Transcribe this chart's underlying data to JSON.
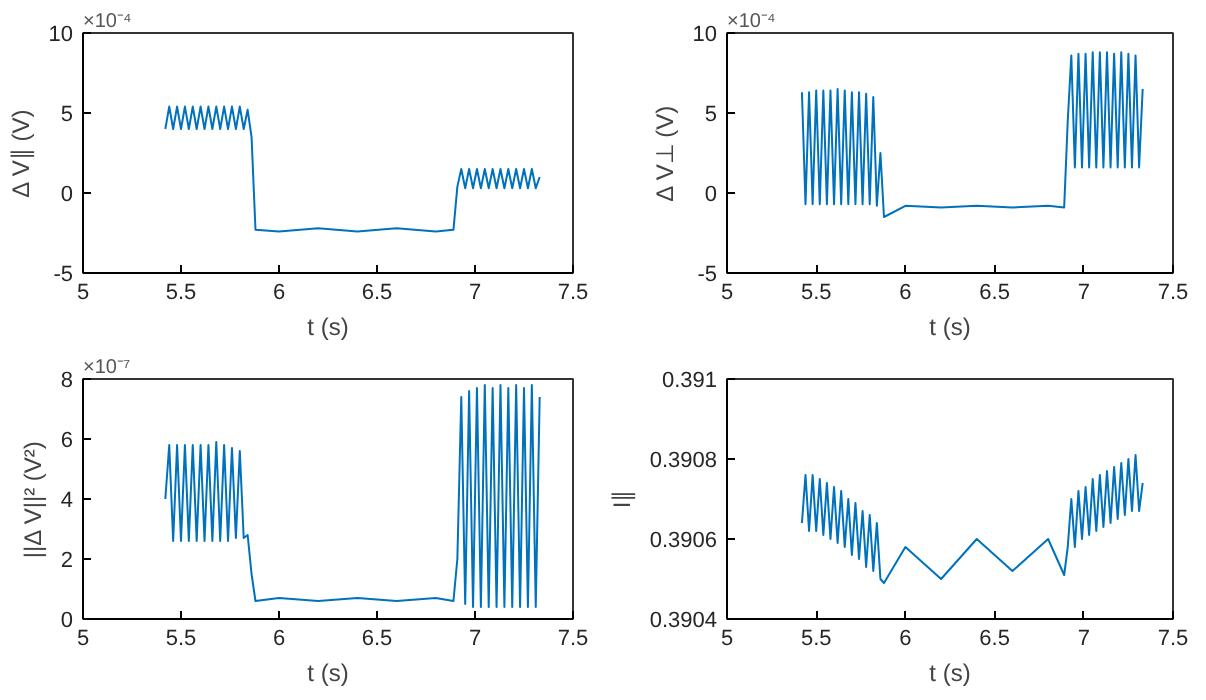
{
  "chart_data": [
    {
      "type": "line",
      "xlabel": "t (s)",
      "ylabel": "Δ V∥ (V)",
      "annotations": [
        "×10⁻⁴"
      ],
      "xlim": [
        5,
        7.5
      ],
      "ylim": [
        -5,
        10
      ],
      "xticks": [
        5,
        5.5,
        6,
        6.5,
        7,
        7.5
      ],
      "yticks": [
        -5,
        0,
        5,
        10
      ],
      "grid": false,
      "x": [
        5.42,
        5.44,
        5.46,
        5.48,
        5.5,
        5.52,
        5.54,
        5.56,
        5.58,
        5.6,
        5.62,
        5.64,
        5.66,
        5.68,
        5.7,
        5.72,
        5.74,
        5.76,
        5.78,
        5.8,
        5.82,
        5.84,
        5.86,
        5.88,
        6.0,
        6.2,
        6.4,
        6.6,
        6.8,
        6.89,
        6.91,
        6.93,
        6.95,
        6.97,
        6.99,
        7.01,
        7.03,
        7.05,
        7.07,
        7.09,
        7.11,
        7.13,
        7.15,
        7.17,
        7.19,
        7.21,
        7.23,
        7.25,
        7.27,
        7.29,
        7.31,
        7.33
      ],
      "series": [
        {
          "color": "#0072bd",
          "values": [
            4.0,
            5.4,
            4.0,
            5.4,
            4.0,
            5.4,
            4.0,
            5.4,
            4.0,
            5.4,
            4.0,
            5.4,
            4.0,
            5.4,
            4.0,
            5.4,
            4.0,
            5.4,
            4.0,
            5.4,
            4.0,
            5.2,
            3.5,
            -2.3,
            -2.4,
            -2.2,
            -2.4,
            -2.2,
            -2.4,
            -2.3,
            0.4,
            1.5,
            0.3,
            1.5,
            0.3,
            1.5,
            0.3,
            1.5,
            0.3,
            1.5,
            0.3,
            1.5,
            0.3,
            1.5,
            0.3,
            1.5,
            0.3,
            1.5,
            0.3,
            1.5,
            0.3,
            1.0
          ]
        }
      ]
    },
    {
      "type": "line",
      "xlabel": "t (s)",
      "ylabel": "Δ V⊥ (V)",
      "annotations": [
        "×10⁻⁴"
      ],
      "xlim": [
        5,
        7.5
      ],
      "ylim": [
        -5,
        10
      ],
      "xticks": [
        5,
        5.5,
        6,
        6.5,
        7,
        7.5
      ],
      "yticks": [
        -5,
        0,
        5,
        10
      ],
      "grid": false,
      "x": [
        5.42,
        5.44,
        5.46,
        5.48,
        5.5,
        5.52,
        5.54,
        5.56,
        5.58,
        5.6,
        5.62,
        5.64,
        5.66,
        5.68,
        5.7,
        5.72,
        5.74,
        5.76,
        5.78,
        5.8,
        5.82,
        5.84,
        5.86,
        5.88,
        6.0,
        6.2,
        6.4,
        6.6,
        6.8,
        6.89,
        6.91,
        6.93,
        6.95,
        6.97,
        6.99,
        7.01,
        7.03,
        7.05,
        7.07,
        7.09,
        7.11,
        7.13,
        7.15,
        7.17,
        7.19,
        7.21,
        7.23,
        7.25,
        7.27,
        7.29,
        7.31,
        7.33
      ],
      "series": [
        {
          "color": "#0072bd",
          "values": [
            6.3,
            -0.7,
            6.3,
            -0.7,
            6.4,
            -0.7,
            6.4,
            -0.7,
            6.4,
            -0.7,
            6.5,
            -0.7,
            6.4,
            -0.7,
            6.3,
            -0.7,
            6.3,
            -0.7,
            6.2,
            -0.7,
            6.0,
            -0.8,
            2.5,
            -1.5,
            -0.8,
            -0.9,
            -0.8,
            -0.9,
            -0.8,
            -0.9,
            4.5,
            8.6,
            1.6,
            8.7,
            1.6,
            8.7,
            1.6,
            8.8,
            1.6,
            8.8,
            1.6,
            8.8,
            1.6,
            8.7,
            1.6,
            8.8,
            1.6,
            8.7,
            1.6,
            8.6,
            1.6,
            6.5
          ]
        }
      ]
    },
    {
      "type": "line",
      "xlabel": "t (s)",
      "ylabel": "||Δ V||² (V²)",
      "annotations": [
        "×10⁻⁷"
      ],
      "xlim": [
        5,
        7.5
      ],
      "ylim": [
        0,
        8
      ],
      "xticks": [
        5,
        5.5,
        6,
        6.5,
        7,
        7.5
      ],
      "yticks": [
        0,
        2,
        4,
        6,
        8
      ],
      "grid": false,
      "x": [
        5.42,
        5.44,
        5.46,
        5.48,
        5.5,
        5.52,
        5.54,
        5.56,
        5.58,
        5.6,
        5.62,
        5.64,
        5.66,
        5.68,
        5.7,
        5.72,
        5.74,
        5.76,
        5.78,
        5.8,
        5.82,
        5.84,
        5.86,
        5.88,
        6.0,
        6.2,
        6.4,
        6.6,
        6.8,
        6.89,
        6.91,
        6.93,
        6.95,
        6.97,
        6.99,
        7.01,
        7.03,
        7.05,
        7.07,
        7.09,
        7.11,
        7.13,
        7.15,
        7.17,
        7.19,
        7.21,
        7.23,
        7.25,
        7.27,
        7.29,
        7.31,
        7.33
      ],
      "series": [
        {
          "color": "#0072bd",
          "values": [
            4.0,
            5.8,
            2.6,
            5.8,
            2.6,
            5.8,
            2.6,
            5.8,
            2.6,
            5.8,
            2.6,
            5.8,
            2.6,
            5.9,
            2.6,
            5.8,
            2.6,
            5.7,
            2.7,
            5.6,
            2.7,
            2.8,
            1.5,
            0.6,
            0.7,
            0.6,
            0.7,
            0.6,
            0.7,
            0.6,
            2.0,
            7.4,
            0.5,
            7.6,
            0.4,
            7.7,
            0.4,
            7.8,
            0.4,
            7.7,
            0.4,
            7.8,
            0.4,
            7.7,
            0.4,
            7.8,
            0.4,
            7.7,
            0.4,
            7.8,
            0.4,
            7.4
          ]
        }
      ]
    },
    {
      "type": "line",
      "xlabel": "t (s)",
      "ylabel": "I∥",
      "xlim": [
        5,
        7.5
      ],
      "ylim": [
        0.3904,
        0.391
      ],
      "xticks": [
        5,
        5.5,
        6,
        6.5,
        7,
        7.5
      ],
      "yticks": [
        0.3904,
        0.3906,
        0.3908,
        0.391
      ],
      "grid": false,
      "x": [
        5.42,
        5.44,
        5.46,
        5.48,
        5.5,
        5.52,
        5.54,
        5.56,
        5.58,
        5.6,
        5.62,
        5.64,
        5.66,
        5.68,
        5.7,
        5.72,
        5.74,
        5.76,
        5.78,
        5.8,
        5.82,
        5.84,
        5.86,
        5.88,
        6.0,
        6.2,
        6.4,
        6.6,
        6.8,
        6.89,
        6.91,
        6.93,
        6.95,
        6.97,
        6.99,
        7.01,
        7.03,
        7.05,
        7.07,
        7.09,
        7.11,
        7.13,
        7.15,
        7.17,
        7.19,
        7.21,
        7.23,
        7.25,
        7.27,
        7.29,
        7.31,
        7.33
      ],
      "series": [
        {
          "color": "#0072bd",
          "values": [
            0.39064,
            0.39076,
            0.39062,
            0.39076,
            0.39062,
            0.39075,
            0.39061,
            0.39074,
            0.3906,
            0.39073,
            0.39059,
            0.39072,
            0.39058,
            0.3907,
            0.39056,
            0.39069,
            0.39055,
            0.39067,
            0.39053,
            0.39066,
            0.39052,
            0.39064,
            0.3905,
            0.39049,
            0.39058,
            0.3905,
            0.3906,
            0.39052,
            0.3906,
            0.39051,
            0.39058,
            0.3907,
            0.39058,
            0.39072,
            0.3906,
            0.39073,
            0.39061,
            0.39075,
            0.39062,
            0.39076,
            0.39063,
            0.39077,
            0.39064,
            0.39078,
            0.39065,
            0.39079,
            0.39066,
            0.3908,
            0.39067,
            0.39081,
            0.39067,
            0.39074
          ]
        }
      ]
    }
  ]
}
